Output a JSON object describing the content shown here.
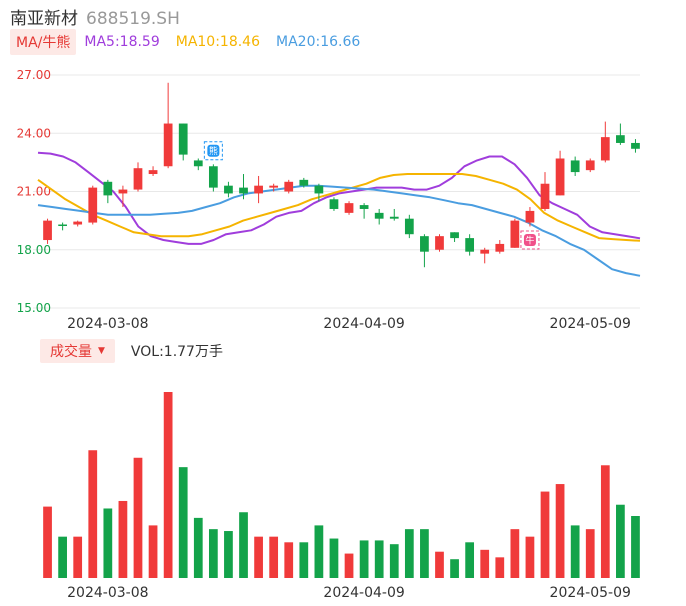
{
  "header": {
    "name": "南亚新材",
    "code": "688519.SH"
  },
  "ma_legend": {
    "tag": "MA/牛熊",
    "items": [
      {
        "label": "MA5:18.59",
        "color": "#a03ddc"
      },
      {
        "label": "MA10:18.46",
        "color": "#f5b400"
      },
      {
        "label": "MA20:16.66",
        "color": "#4a9de0"
      }
    ]
  },
  "volume_legend": {
    "tag": "成交量",
    "value_label": "VOL:1.77万手"
  },
  "colors": {
    "up": "#f03a3a",
    "down": "#13a34a",
    "tick_red": "#e53935",
    "tick_green": "#13a34a"
  },
  "chart_data": [
    {
      "type": "candlestick",
      "yticks": [
        "27.00",
        "24.00",
        "21.00",
        "18.00",
        "15.00"
      ],
      "ylim": [
        15,
        27
      ],
      "xticks": [
        {
          "label": "2024-03-08",
          "index": 4
        },
        {
          "label": "2024-04-09",
          "index": 21
        },
        {
          "label": "2024-05-09",
          "index": 36
        }
      ],
      "grid": true,
      "markers": [
        {
          "label": "熊",
          "index": 11,
          "price": 23.1,
          "color": "#2196f3"
        },
        {
          "label": "牛",
          "index": 32,
          "price": 18.5,
          "color": "#f0508a"
        }
      ],
      "candles": [
        {
          "o": 18.5,
          "h": 19.6,
          "l": 18.3,
          "c": 19.5
        },
        {
          "o": 19.3,
          "h": 19.4,
          "l": 19.0,
          "c": 19.25
        },
        {
          "o": 19.3,
          "h": 19.5,
          "l": 19.2,
          "c": 19.45
        },
        {
          "o": 19.4,
          "h": 21.3,
          "l": 19.3,
          "c": 21.2
        },
        {
          "o": 21.5,
          "h": 21.6,
          "l": 20.4,
          "c": 20.8
        },
        {
          "o": 20.9,
          "h": 21.3,
          "l": 20.2,
          "c": 21.1
        },
        {
          "o": 21.1,
          "h": 22.5,
          "l": 21.0,
          "c": 22.2
        },
        {
          "o": 21.9,
          "h": 22.3,
          "l": 21.8,
          "c": 22.1
        },
        {
          "o": 22.3,
          "h": 26.6,
          "l": 22.2,
          "c": 24.5
        },
        {
          "o": 24.5,
          "h": 24.5,
          "l": 22.6,
          "c": 22.9
        },
        {
          "o": 22.6,
          "h": 22.7,
          "l": 22.1,
          "c": 22.3
        },
        {
          "o": 22.3,
          "h": 22.4,
          "l": 21.0,
          "c": 21.2
        },
        {
          "o": 21.3,
          "h": 21.5,
          "l": 20.7,
          "c": 20.9
        },
        {
          "o": 21.2,
          "h": 21.9,
          "l": 20.6,
          "c": 20.9
        },
        {
          "o": 20.9,
          "h": 21.8,
          "l": 20.4,
          "c": 21.3
        },
        {
          "o": 21.2,
          "h": 21.4,
          "l": 21.0,
          "c": 21.3
        },
        {
          "o": 21.0,
          "h": 21.6,
          "l": 20.9,
          "c": 21.5
        },
        {
          "o": 21.6,
          "h": 21.7,
          "l": 21.2,
          "c": 21.3
        },
        {
          "o": 21.3,
          "h": 21.4,
          "l": 20.5,
          "c": 20.9
        },
        {
          "o": 20.6,
          "h": 20.7,
          "l": 20.0,
          "c": 20.1
        },
        {
          "o": 19.9,
          "h": 20.5,
          "l": 19.8,
          "c": 20.4
        },
        {
          "o": 20.3,
          "h": 20.4,
          "l": 19.6,
          "c": 20.1
        },
        {
          "o": 19.9,
          "h": 20.1,
          "l": 19.3,
          "c": 19.6
        },
        {
          "o": 19.7,
          "h": 20.1,
          "l": 19.5,
          "c": 19.6
        },
        {
          "o": 19.6,
          "h": 19.8,
          "l": 18.6,
          "c": 18.8
        },
        {
          "o": 18.7,
          "h": 18.8,
          "l": 17.1,
          "c": 17.9
        },
        {
          "o": 18.0,
          "h": 18.8,
          "l": 17.9,
          "c": 18.7
        },
        {
          "o": 18.9,
          "h": 18.9,
          "l": 18.4,
          "c": 18.6
        },
        {
          "o": 18.6,
          "h": 18.8,
          "l": 17.7,
          "c": 17.9
        },
        {
          "o": 17.8,
          "h": 18.1,
          "l": 17.3,
          "c": 18.0
        },
        {
          "o": 17.9,
          "h": 18.5,
          "l": 17.8,
          "c": 18.3
        },
        {
          "o": 18.1,
          "h": 19.6,
          "l": 18.1,
          "c": 19.5
        },
        {
          "o": 19.4,
          "h": 20.2,
          "l": 19.2,
          "c": 20.0
        },
        {
          "o": 20.1,
          "h": 22.0,
          "l": 20.0,
          "c": 21.4
        },
        {
          "o": 20.8,
          "h": 23.1,
          "l": 20.8,
          "c": 22.7
        },
        {
          "o": 22.6,
          "h": 22.8,
          "l": 21.8,
          "c": 22.0
        },
        {
          "o": 22.1,
          "h": 22.7,
          "l": 22.0,
          "c": 22.6
        },
        {
          "o": 22.6,
          "h": 24.6,
          "l": 22.5,
          "c": 23.8
        },
        {
          "o": 23.9,
          "h": 24.5,
          "l": 23.4,
          "c": 23.5
        },
        {
          "o": 23.5,
          "h": 23.7,
          "l": 23.0,
          "c": 23.2
        }
      ],
      "ma_lines": [
        {
          "name": "MA5",
          "color": "#a03ddc",
          "values": [
            23.0,
            22.95,
            22.8,
            22.5,
            22.0,
            21.5,
            21.0,
            20.2,
            19.2,
            18.7,
            18.5,
            18.4,
            18.3,
            18.3,
            18.5,
            18.8,
            18.9,
            19.0,
            19.3,
            19.7,
            19.9,
            20.0,
            20.4,
            20.7,
            20.9,
            21.0,
            21.1,
            21.2,
            21.2,
            21.2,
            21.1,
            21.1,
            21.3,
            21.7,
            22.3,
            22.6,
            22.8,
            22.8,
            22.4,
            21.7,
            20.8,
            20.4,
            20.1,
            19.8,
            19.2,
            18.9,
            18.8,
            18.7,
            18.59
          ]
        },
        {
          "name": "MA10",
          "color": "#f5b400",
          "values": [
            21.6,
            21.1,
            20.6,
            20.2,
            19.8,
            19.5,
            19.2,
            18.9,
            18.8,
            18.7,
            18.7,
            18.7,
            18.8,
            19.0,
            19.2,
            19.5,
            19.7,
            19.9,
            20.1,
            20.3,
            20.6,
            20.8,
            21.0,
            21.2,
            21.4,
            21.7,
            21.85,
            21.9,
            21.9,
            21.9,
            21.9,
            21.9,
            21.8,
            21.6,
            21.4,
            21.1,
            20.6,
            19.9,
            19.5,
            19.2,
            18.9,
            18.6,
            18.55,
            18.5,
            18.46
          ]
        },
        {
          "name": "MA20",
          "color": "#4a9de0",
          "values": [
            20.3,
            20.2,
            20.1,
            20.0,
            19.9,
            19.8,
            19.8,
            19.8,
            19.8,
            19.85,
            19.9,
            20.0,
            20.2,
            20.4,
            20.7,
            20.9,
            21.0,
            21.1,
            21.2,
            21.3,
            21.3,
            21.25,
            21.2,
            21.15,
            21.1,
            21.0,
            20.9,
            20.8,
            20.7,
            20.55,
            20.4,
            20.3,
            20.1,
            19.9,
            19.7,
            19.4,
            19.0,
            18.7,
            18.3,
            18.0,
            17.5,
            17.0,
            16.8,
            16.66
          ]
        }
      ]
    },
    {
      "type": "bar",
      "name": "volume",
      "values": [
        38,
        22,
        22,
        68,
        37,
        41,
        64,
        28,
        99,
        59,
        32,
        26,
        25,
        35,
        22,
        22,
        19,
        19,
        28,
        21,
        13,
        20,
        20,
        18,
        26,
        26,
        14,
        10,
        19,
        15,
        11,
        26,
        22,
        46,
        50,
        28,
        26,
        60,
        39,
        33
      ]
    }
  ]
}
